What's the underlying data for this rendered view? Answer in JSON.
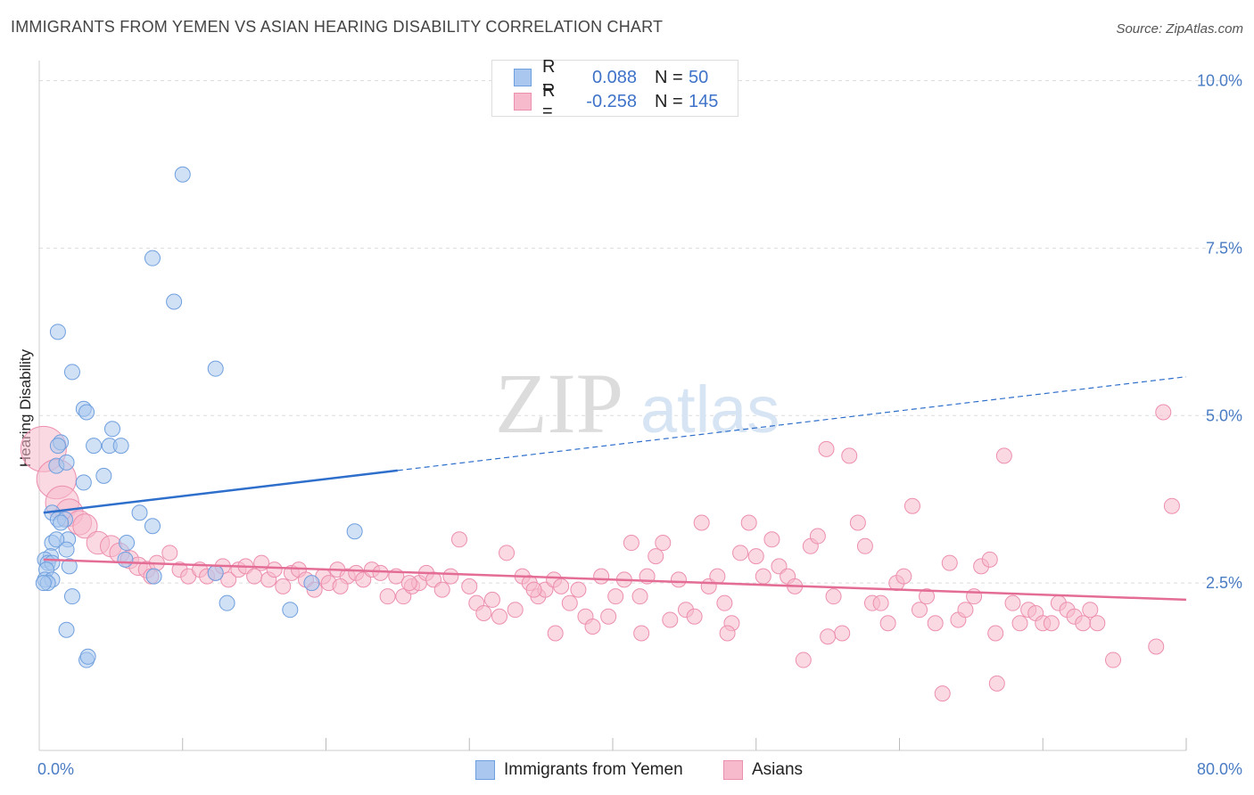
{
  "title": "IMMIGRANTS FROM YEMEN VS ASIAN HEARING DISABILITY CORRELATION CHART",
  "source": "Source: ZipAtlas.com",
  "watermark": {
    "zip": "ZIP",
    "atlas": "atlas"
  },
  "legend": {
    "rows": [
      {
        "r_label": "R =",
        "r_value": "0.088",
        "n_label": "N =",
        "n_value": "50"
      },
      {
        "r_label": "R =",
        "r_value": "-0.258",
        "n_label": "N =",
        "n_value": "145"
      }
    ]
  },
  "bottom_legend": {
    "yemen": "Immigrants from Yemen",
    "asians": "Asians"
  },
  "colors": {
    "yemen_fill": "#aac8ef",
    "yemen_stroke": "#6f9fde",
    "yemen_line": "#2f6fcc",
    "asian_fill": "#f7b9cc",
    "asian_stroke": "#ec8fae",
    "asian_line": "#e46d96",
    "tick": "#4a7cc4",
    "grid": "#dddddd"
  },
  "chart_data": {
    "type": "scatter",
    "title": "IMMIGRANTS FROM YEMEN VS ASIAN HEARING DISABILITY CORRELATION CHART",
    "xlabel": "",
    "ylabel": "Hearing Disability",
    "xlim": [
      0,
      80
    ],
    "ylim": [
      0,
      10.3
    ],
    "x_tick_labels": [
      "0.0%",
      "80.0%"
    ],
    "y_ticks": [
      2.5,
      5.0,
      7.5,
      10.0
    ],
    "y_tick_labels": [
      "2.5%",
      "5.0%",
      "7.5%",
      "10.0%"
    ],
    "grid": true,
    "series": [
      {
        "name": "Immigrants from Yemen",
        "R": 0.088,
        "N": 50,
        "trend": {
          "x0": 0.3,
          "y0": 3.55,
          "x1": 25.0,
          "y1": 4.18,
          "x_ext": 80.0,
          "y_ext": 5.58
        },
        "points": [
          [
            10.0,
            8.6,
            1
          ],
          [
            7.9,
            7.35,
            1
          ],
          [
            9.4,
            6.7,
            1
          ],
          [
            1.3,
            6.25,
            1
          ],
          [
            12.3,
            5.7,
            1
          ],
          [
            2.3,
            5.65,
            1
          ],
          [
            3.1,
            5.1,
            1
          ],
          [
            3.3,
            5.05,
            1
          ],
          [
            5.1,
            4.8,
            1
          ],
          [
            1.5,
            4.6,
            1
          ],
          [
            1.3,
            4.55,
            1
          ],
          [
            3.8,
            4.55,
            1
          ],
          [
            4.9,
            4.55,
            1
          ],
          [
            5.7,
            4.55,
            1
          ],
          [
            1.2,
            4.25,
            1
          ],
          [
            1.9,
            4.3,
            1
          ],
          [
            4.5,
            4.1,
            1
          ],
          [
            3.1,
            4.0,
            1
          ],
          [
            7.0,
            3.55,
            1
          ],
          [
            0.9,
            3.55,
            1
          ],
          [
            1.3,
            3.45,
            1
          ],
          [
            1.8,
            3.45,
            1
          ],
          [
            1.5,
            3.4,
            1
          ],
          [
            7.9,
            3.35,
            1
          ],
          [
            22.0,
            3.27,
            1
          ],
          [
            2.0,
            3.15,
            1
          ],
          [
            0.9,
            3.1,
            1
          ],
          [
            1.2,
            3.15,
            1
          ],
          [
            6.1,
            3.1,
            1
          ],
          [
            1.9,
            3.0,
            1
          ],
          [
            0.8,
            2.9,
            1
          ],
          [
            0.4,
            2.85,
            1
          ],
          [
            0.6,
            2.8,
            1
          ],
          [
            0.9,
            2.8,
            1
          ],
          [
            0.5,
            2.7,
            1
          ],
          [
            2.1,
            2.75,
            1
          ],
          [
            6.0,
            2.85,
            1
          ],
          [
            0.4,
            2.55,
            1
          ],
          [
            0.9,
            2.55,
            1
          ],
          [
            0.6,
            2.5,
            1
          ],
          [
            8.0,
            2.6,
            1
          ],
          [
            12.3,
            2.65,
            1
          ],
          [
            0.3,
            2.5,
            1
          ],
          [
            19.0,
            2.5,
            1
          ],
          [
            2.3,
            2.3,
            1
          ],
          [
            13.1,
            2.2,
            1
          ],
          [
            17.5,
            2.1,
            1
          ],
          [
            1.9,
            1.8,
            1
          ],
          [
            3.3,
            1.35,
            1
          ],
          [
            3.4,
            1.4,
            1
          ]
        ]
      },
      {
        "name": "Asians",
        "R": -0.258,
        "N": 145,
        "trend": {
          "x0": 0.3,
          "y0": 2.85,
          "x1": 80.0,
          "y1": 2.25
        },
        "points": [
          [
            0.3,
            4.5,
            3
          ],
          [
            1.2,
            4.05,
            2.6
          ],
          [
            1.6,
            3.7,
            2.2
          ],
          [
            2.1,
            3.55,
            1.8
          ],
          [
            2.8,
            3.4,
            1.6
          ],
          [
            3.2,
            3.35,
            1.6
          ],
          [
            4.1,
            3.1,
            1.5
          ],
          [
            5.0,
            3.05,
            1.4
          ],
          [
            5.6,
            2.95,
            1.3
          ],
          [
            6.3,
            2.85,
            1.2
          ],
          [
            6.9,
            2.75,
            1.2
          ],
          [
            7.5,
            2.7,
            1.1
          ],
          [
            8.2,
            2.8,
            1
          ],
          [
            9.1,
            2.95,
            1
          ],
          [
            9.8,
            2.7,
            1
          ],
          [
            10.4,
            2.6,
            1
          ],
          [
            11.2,
            2.7,
            1
          ],
          [
            11.7,
            2.6,
            1
          ],
          [
            12.3,
            2.65,
            1
          ],
          [
            12.8,
            2.75,
            1
          ],
          [
            13.2,
            2.55,
            1
          ],
          [
            13.9,
            2.7,
            1
          ],
          [
            14.4,
            2.75,
            1
          ],
          [
            15.0,
            2.6,
            1
          ],
          [
            15.5,
            2.8,
            1
          ],
          [
            16.0,
            2.55,
            1
          ],
          [
            16.4,
            2.7,
            1
          ],
          [
            17.0,
            2.45,
            1
          ],
          [
            17.6,
            2.65,
            1
          ],
          [
            18.1,
            2.7,
            1
          ],
          [
            18.6,
            2.55,
            1
          ],
          [
            19.2,
            2.4,
            1
          ],
          [
            19.8,
            2.6,
            1
          ],
          [
            20.2,
            2.5,
            1
          ],
          [
            20.8,
            2.7,
            1
          ],
          [
            21.5,
            2.6,
            1
          ],
          [
            22.1,
            2.65,
            1
          ],
          [
            22.6,
            2.55,
            1
          ],
          [
            23.2,
            2.7,
            1
          ],
          [
            23.8,
            2.65,
            1
          ],
          [
            24.3,
            2.3,
            1
          ],
          [
            24.9,
            2.6,
            1
          ],
          [
            25.4,
            2.3,
            1
          ],
          [
            26.0,
            2.45,
            1
          ],
          [
            26.5,
            2.5,
            1
          ],
          [
            27.0,
            2.65,
            1
          ],
          [
            27.5,
            2.55,
            1
          ],
          [
            28.1,
            2.4,
            1
          ],
          [
            28.7,
            2.6,
            1
          ],
          [
            29.3,
            3.15,
            1
          ],
          [
            30.0,
            2.45,
            1
          ],
          [
            30.5,
            2.2,
            1
          ],
          [
            31.0,
            2.05,
            1
          ],
          [
            31.6,
            2.25,
            1
          ],
          [
            32.1,
            2.0,
            1
          ],
          [
            32.6,
            2.95,
            1
          ],
          [
            33.2,
            2.1,
            1
          ],
          [
            33.7,
            2.6,
            1
          ],
          [
            34.2,
            2.5,
            1
          ],
          [
            34.8,
            2.3,
            1
          ],
          [
            35.3,
            2.4,
            1
          ],
          [
            35.9,
            2.55,
            1
          ],
          [
            36.4,
            2.45,
            1
          ],
          [
            37.0,
            2.2,
            1
          ],
          [
            37.6,
            2.4,
            1
          ],
          [
            38.1,
            2.0,
            1
          ],
          [
            38.6,
            1.85,
            1
          ],
          [
            39.2,
            2.6,
            1
          ],
          [
            39.7,
            2.0,
            1
          ],
          [
            40.2,
            2.3,
            1
          ],
          [
            40.8,
            2.55,
            1
          ],
          [
            41.3,
            3.1,
            1
          ],
          [
            41.9,
            2.3,
            1
          ],
          [
            42.4,
            2.6,
            1
          ],
          [
            43.0,
            2.9,
            1
          ],
          [
            43.5,
            3.1,
            1
          ],
          [
            44.0,
            1.95,
            1
          ],
          [
            44.6,
            2.55,
            1
          ],
          [
            45.1,
            2.1,
            1
          ],
          [
            45.7,
            2.0,
            1
          ],
          [
            46.2,
            3.4,
            1
          ],
          [
            46.7,
            2.45,
            1
          ],
          [
            47.3,
            2.6,
            1
          ],
          [
            47.8,
            2.2,
            1
          ],
          [
            48.3,
            1.9,
            1
          ],
          [
            48.9,
            2.95,
            1
          ],
          [
            49.5,
            3.4,
            1
          ],
          [
            50.0,
            2.9,
            1
          ],
          [
            50.5,
            2.6,
            1
          ],
          [
            51.1,
            3.15,
            1
          ],
          [
            51.6,
            2.75,
            1
          ],
          [
            52.2,
            2.6,
            1
          ],
          [
            52.7,
            2.45,
            1
          ],
          [
            53.3,
            1.35,
            1
          ],
          [
            53.8,
            3.05,
            1
          ],
          [
            54.3,
            3.2,
            1
          ],
          [
            54.9,
            4.5,
            1
          ],
          [
            55.4,
            2.3,
            1
          ],
          [
            56.0,
            1.75,
            1
          ],
          [
            56.5,
            4.4,
            1
          ],
          [
            57.1,
            3.4,
            1
          ],
          [
            57.6,
            3.05,
            1
          ],
          [
            58.1,
            2.2,
            1
          ],
          [
            58.7,
            2.2,
            1
          ],
          [
            59.2,
            1.9,
            1
          ],
          [
            59.8,
            2.5,
            1
          ],
          [
            60.3,
            2.6,
            1
          ],
          [
            60.9,
            3.65,
            1
          ],
          [
            61.4,
            2.1,
            1
          ],
          [
            61.9,
            2.3,
            1
          ],
          [
            62.5,
            1.9,
            1
          ],
          [
            63.0,
            0.85,
            1
          ],
          [
            63.5,
            2.8,
            1
          ],
          [
            64.1,
            1.95,
            1
          ],
          [
            64.6,
            2.1,
            1
          ],
          [
            65.2,
            2.3,
            1
          ],
          [
            65.7,
            2.75,
            1
          ],
          [
            66.3,
            2.85,
            1
          ],
          [
            66.8,
            1.0,
            1
          ],
          [
            67.3,
            4.4,
            1
          ],
          [
            67.9,
            2.2,
            1
          ],
          [
            68.4,
            1.9,
            1
          ],
          [
            69.0,
            2.1,
            1
          ],
          [
            69.5,
            2.05,
            1
          ],
          [
            70.0,
            1.9,
            1
          ],
          [
            70.6,
            1.9,
            1
          ],
          [
            71.1,
            2.2,
            1
          ],
          [
            71.7,
            2.1,
            1
          ],
          [
            72.2,
            2.0,
            1
          ],
          [
            72.8,
            1.9,
            1
          ],
          [
            73.3,
            2.1,
            1
          ],
          [
            73.8,
            1.9,
            1
          ],
          [
            74.9,
            1.35,
            1
          ],
          [
            77.9,
            1.55,
            1
          ],
          [
            79.0,
            3.65,
            1
          ],
          [
            78.4,
            5.05,
            1
          ],
          [
            66.7,
            1.75,
            1
          ],
          [
            55.0,
            1.7,
            1
          ],
          [
            48.0,
            1.75,
            1
          ],
          [
            42.0,
            1.75,
            1
          ],
          [
            36.0,
            1.75,
            1
          ],
          [
            34.5,
            2.4,
            1
          ],
          [
            25.8,
            2.5,
            1
          ],
          [
            21.0,
            2.45,
            1
          ],
          [
            7.8,
            2.6,
            1
          ]
        ]
      }
    ]
  }
}
